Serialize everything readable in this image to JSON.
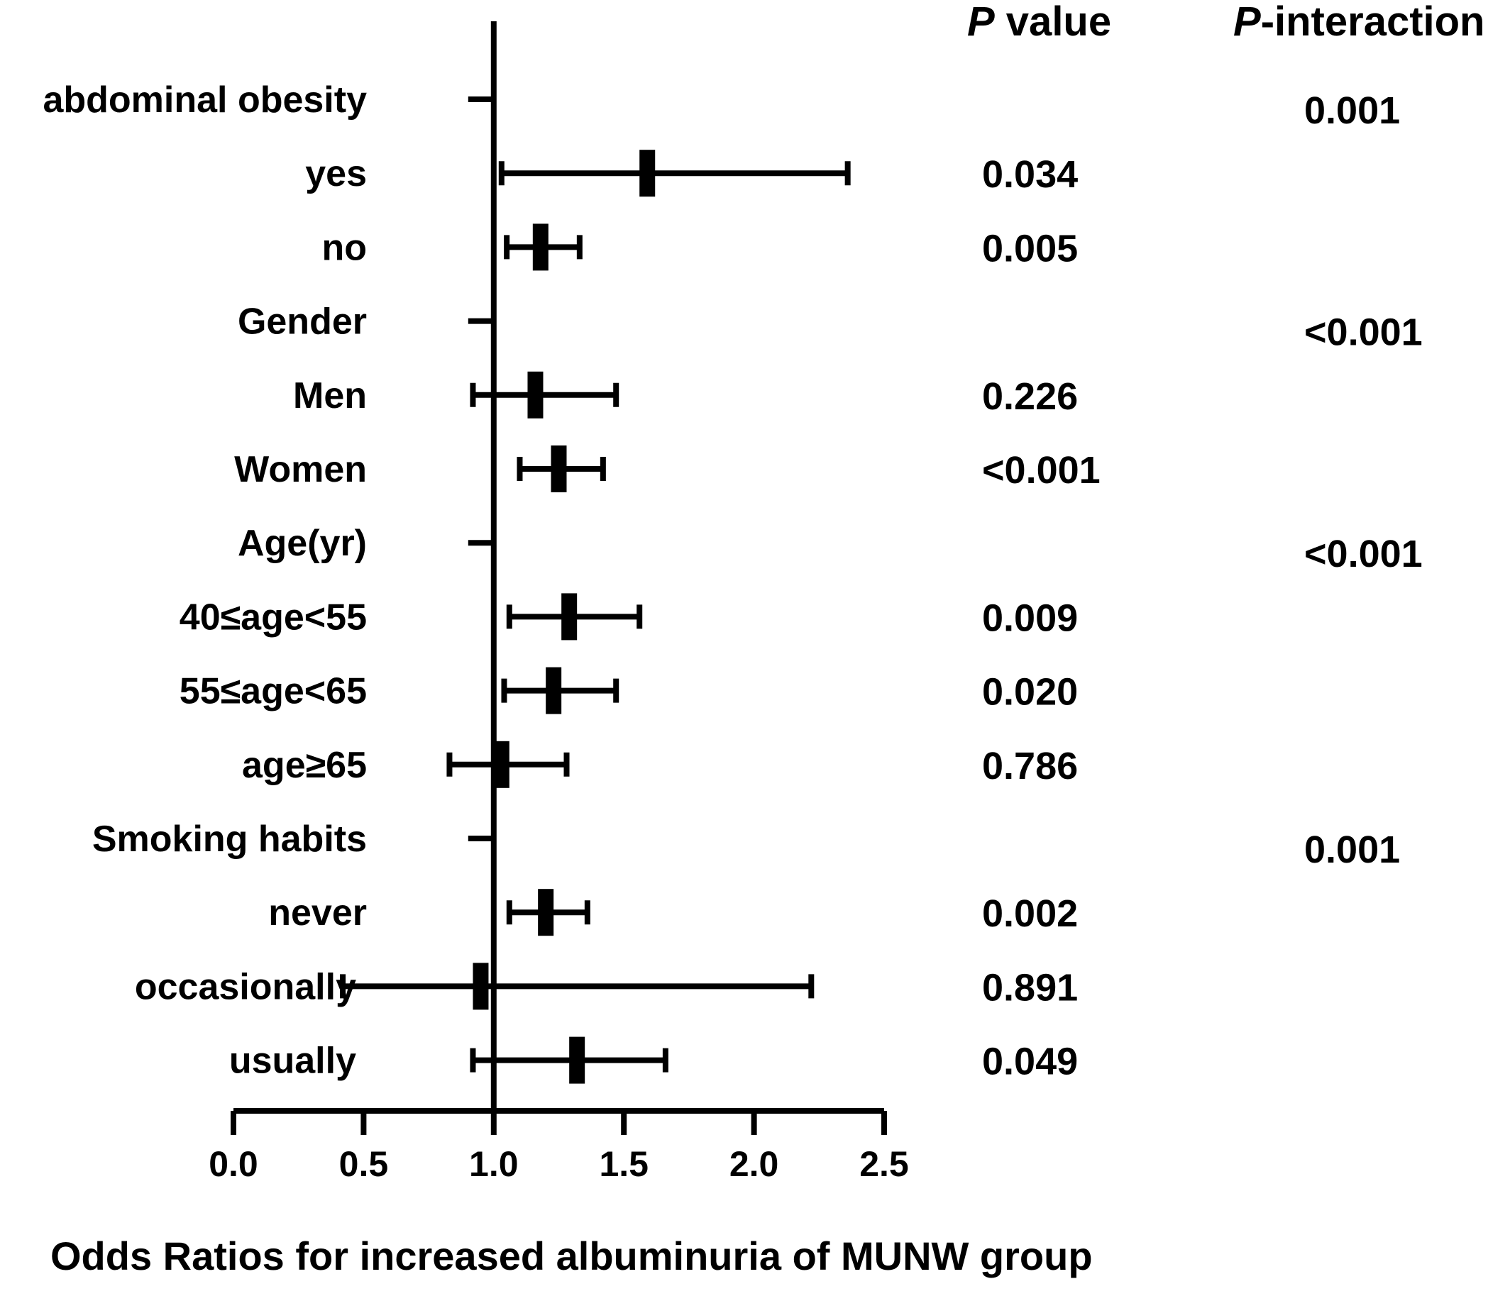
{
  "headers": {
    "p_value_italic": "P",
    "p_value_rest": " value",
    "p_interaction_italic": "P",
    "p_interaction_rest": "-interaction"
  },
  "chart_data": {
    "type": "forest",
    "xlabel": "Odds Ratios for increased albuminuria of MUNW group",
    "xlim": [
      0.0,
      2.5
    ],
    "xticks": [
      "0.0",
      "0.5",
      "1.0",
      "1.5",
      "2.0",
      "2.5"
    ],
    "reference_line": 1.0,
    "rows": [
      {
        "label": "abdominal obesity",
        "header": true,
        "p_interaction": "0.001"
      },
      {
        "label": "yes",
        "or": 1.59,
        "lo": 1.03,
        "hi": 2.36,
        "p_value": "0.034"
      },
      {
        "label": "no",
        "or": 1.18,
        "lo": 1.05,
        "hi": 1.33,
        "p_value": "0.005"
      },
      {
        "label": "Gender",
        "header": true,
        "p_interaction": "<0.001"
      },
      {
        "label": "Men",
        "or": 1.16,
        "lo": 0.92,
        "hi": 1.47,
        "p_value": "0.226"
      },
      {
        "label": "Women",
        "or": 1.25,
        "lo": 1.1,
        "hi": 1.42,
        "p_value": "<0.001"
      },
      {
        "label": "Age(yr)",
        "header": true,
        "p_interaction": "<0.001"
      },
      {
        "label": "40≤age<55",
        "or": 1.29,
        "lo": 1.06,
        "hi": 1.56,
        "p_value": "0.009"
      },
      {
        "label": "55≤age<65",
        "or": 1.23,
        "lo": 1.04,
        "hi": 1.47,
        "p_value": "0.020"
      },
      {
        "label": "age≥65",
        "or": 1.03,
        "lo": 0.83,
        "hi": 1.28,
        "p_value": "0.786"
      },
      {
        "label": "Smoking habits",
        "header": true,
        "p_interaction": "0.001"
      },
      {
        "label": "never",
        "or": 1.2,
        "lo": 1.06,
        "hi": 1.36,
        "p_value": "0.002"
      },
      {
        "label": "occasionally",
        "or": 0.95,
        "lo": 0.42,
        "hi": 2.22,
        "p_value": "0.891"
      },
      {
        "label": "usually",
        "or": 1.32,
        "lo": 0.92,
        "hi": 1.66,
        "p_value": "0.049"
      }
    ]
  }
}
